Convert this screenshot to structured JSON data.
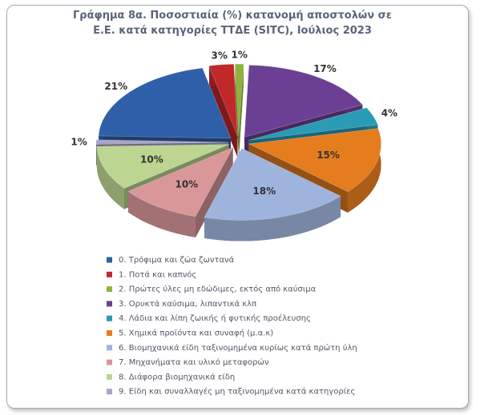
{
  "chart_data": {
    "type": "pie",
    "title": "Γράφημα 8α. Ποσοστιαία (%) κατανομή αποστολών σε Ε.Ε. κατά κατηγορίες ΤΤΔΕ (SITC),  Ιούλιος 2023",
    "categories": [
      "0. Τρόφιμα και ζώα ζωντανά",
      "1. Ποτά και καπνός",
      "2. Πρώτες ύλες μη εδώδιμες, εκτός από καύσιμα",
      "3. Ορυκτά καύσιμα, λιπαντικά κλπ",
      "4. Λάδια και λίπη ζωικής ή φυτικής προέλευσης",
      "5. Χημικά προϊόντα και συναφή (μ.α.κ)",
      "6. Βιομηχανικά είδη ταξινομημένα κυρίως κατά πρώτη ύλη",
      "7. Μηχανήματα και υλικό μεταφορών",
      "8. Διάφορα βιομηχανικά είδη",
      "9. Είδη και συναλλαγές μη ταξινομημένα κατά  κατηγορίες"
    ],
    "values": [
      21,
      3,
      1,
      17,
      4,
      15,
      18,
      10,
      10,
      1
    ],
    "value_labels": [
      "21%",
      "3%",
      "1%",
      "17%",
      "4%",
      "15%",
      "18%",
      "10%",
      "10%",
      "1%"
    ],
    "colors": [
      "#2f5fa8",
      "#c0282a",
      "#8db33a",
      "#6b3f94",
      "#2a9bb5",
      "#e57c1e",
      "#9fb4dc",
      "#d9979a",
      "#bcd590",
      "#a8a3c8"
    ]
  }
}
